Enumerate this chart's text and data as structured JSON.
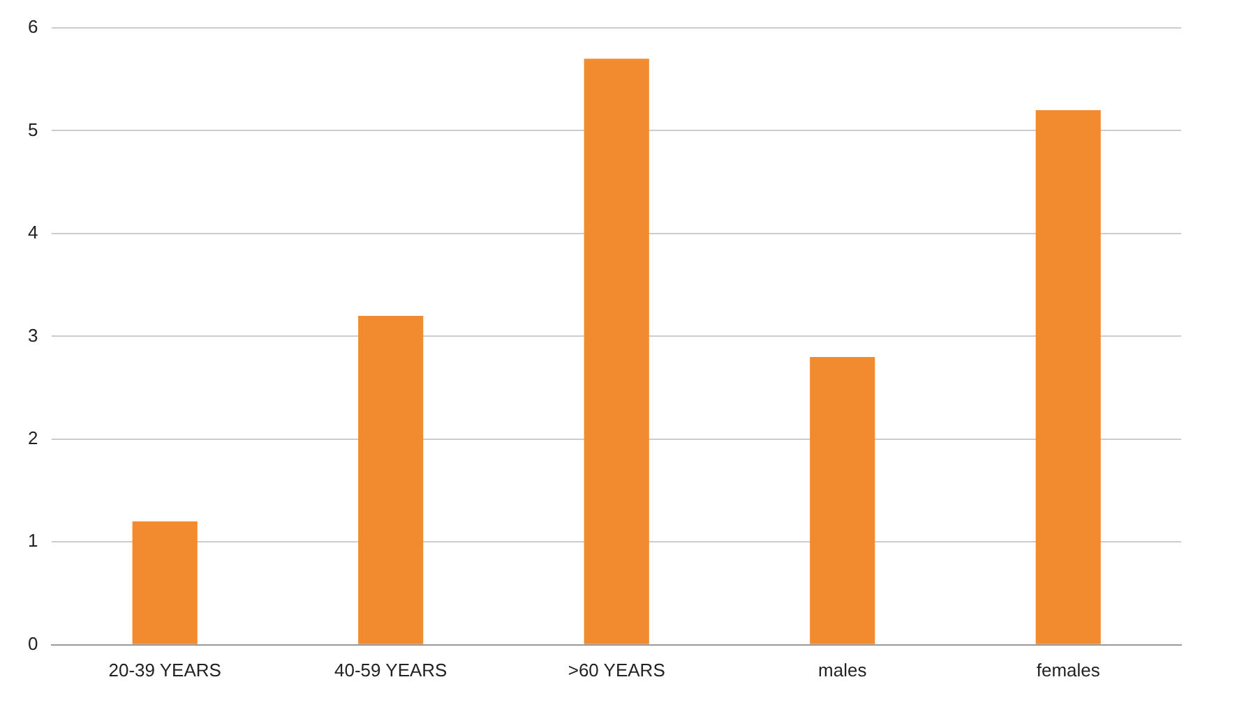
{
  "chart_data": {
    "type": "bar",
    "categories": [
      "20-39 YEARS",
      "40-59 YEARS",
      ">60 YEARS",
      "males",
      "females"
    ],
    "values": [
      1.2,
      3.2,
      5.7,
      2.8,
      5.2
    ],
    "color": "#f28a30",
    "ylim": [
      0,
      6
    ],
    "yticks": [
      0,
      1,
      2,
      3,
      4,
      5,
      6
    ],
    "grid": "y",
    "legend": false
  }
}
